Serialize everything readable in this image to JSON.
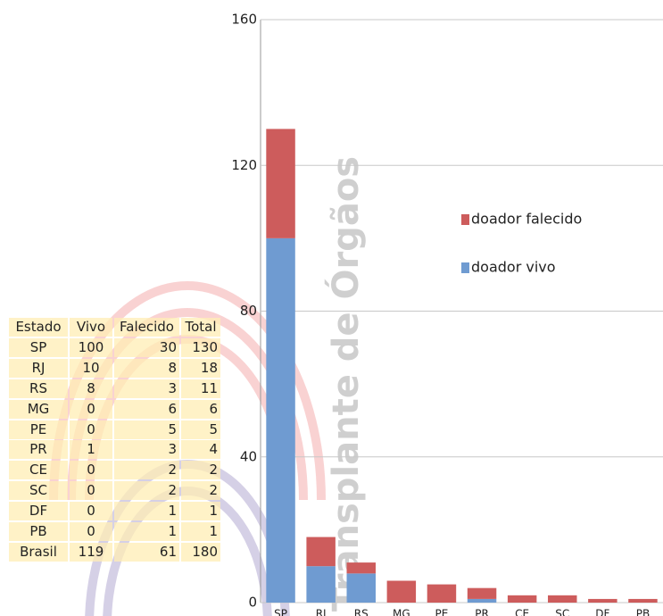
{
  "chart_data": {
    "type": "stacked-bar",
    "watermark": "Transplante de Órgãos",
    "categories": [
      "SP",
      "RJ",
      "RS",
      "MG",
      "PE",
      "PR",
      "CE",
      "SC",
      "DF",
      "PB"
    ],
    "series": [
      {
        "name": "doador vivo",
        "color": "#6f9bd1",
        "values": [
          100,
          10,
          8,
          0,
          0,
          1,
          0,
          0,
          0,
          0
        ]
      },
      {
        "name": "doador falecido",
        "color": "#cd5c5c",
        "values": [
          30,
          8,
          3,
          6,
          5,
          3,
          2,
          2,
          1,
          1
        ]
      }
    ],
    "ylim": [
      0,
      160
    ],
    "yticks": [
      0,
      40,
      80,
      120,
      160
    ],
    "grid": true
  },
  "table": {
    "header": [
      "Estado",
      "Vivo",
      "Falecido",
      "Total"
    ],
    "rows": [
      [
        "SP",
        100,
        30,
        130
      ],
      [
        "RJ",
        10,
        8,
        18
      ],
      [
        "RS",
        8,
        3,
        11
      ],
      [
        "MG",
        0,
        6,
        6
      ],
      [
        "PE",
        0,
        5,
        5
      ],
      [
        "PR",
        1,
        3,
        4
      ],
      [
        "CE",
        0,
        2,
        2
      ],
      [
        "SC",
        0,
        2,
        2
      ],
      [
        "DF",
        0,
        1,
        1
      ],
      [
        "PB",
        0,
        1,
        1
      ],
      [
        "Brasil",
        119,
        61,
        180
      ]
    ]
  }
}
